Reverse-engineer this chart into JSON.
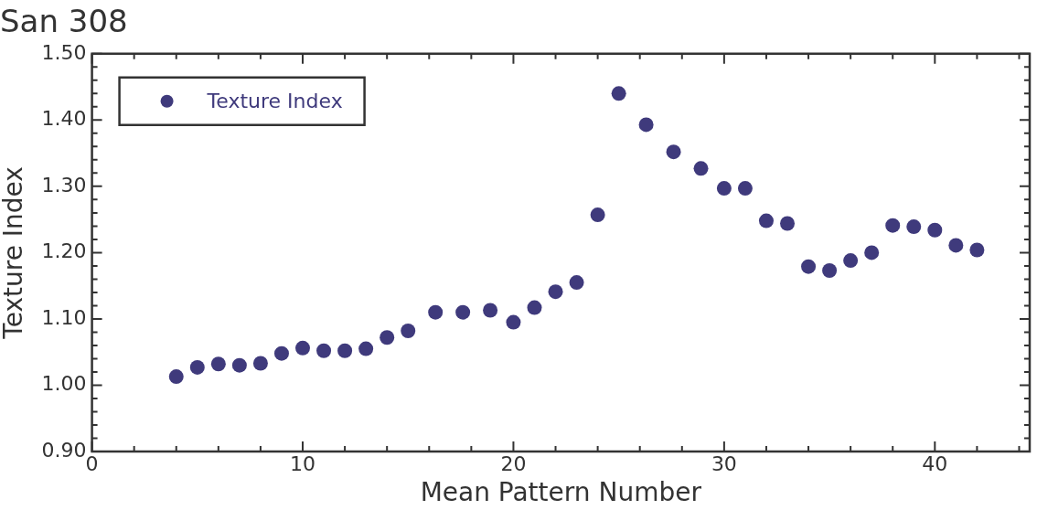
{
  "chart_data": {
    "type": "scatter",
    "title": "San 308",
    "xlabel": "Mean Pattern Number",
    "ylabel": "Texture Index",
    "series": [
      {
        "name": "Texture Index",
        "color": "#3f3a7c",
        "x": [
          4,
          5,
          6,
          7,
          8,
          9,
          10,
          11,
          12,
          13,
          14,
          15,
          16.3,
          17.6,
          18.9,
          20,
          21,
          22,
          23,
          24,
          25,
          26.3,
          27.6,
          28.9,
          30,
          31,
          32,
          33,
          34,
          35,
          36,
          37,
          38,
          39,
          40,
          41,
          42
        ],
        "values": [
          1.013,
          1.027,
          1.032,
          1.03,
          1.033,
          1.048,
          1.056,
          1.052,
          1.052,
          1.055,
          1.072,
          1.082,
          1.11,
          1.11,
          1.113,
          1.095,
          1.117,
          1.141,
          1.155,
          1.257,
          1.44,
          1.393,
          1.352,
          1.327,
          1.297,
          1.297,
          1.248,
          1.244,
          1.179,
          1.173,
          1.188,
          1.2,
          1.241,
          1.239,
          1.234,
          1.211,
          1.204
        ]
      }
    ],
    "xlim": [
      0,
      44.5
    ],
    "xticks": [
      0,
      {
        "value": 2,
        "label": null
      },
      {
        "value": 4,
        "label": null
      },
      {
        "value": 6,
        "label": null
      },
      {
        "value": 8,
        "label": null
      },
      10,
      {
        "value": 12,
        "label": null
      },
      {
        "value": 14,
        "label": null
      },
      {
        "value": 16,
        "label": null
      },
      {
        "value": 18,
        "label": null
      },
      20,
      {
        "value": 22,
        "label": null
      },
      {
        "value": 24,
        "label": null
      },
      {
        "value": 26,
        "label": null
      },
      {
        "value": 28,
        "label": null
      },
      30,
      {
        "value": 32,
        "label": null
      },
      {
        "value": 34,
        "label": null
      },
      {
        "value": 36,
        "label": null
      },
      {
        "value": 38,
        "label": null
      },
      40,
      {
        "value": 42,
        "label": null
      },
      {
        "value": 44,
        "label": null
      }
    ],
    "ylim": [
      0.9,
      1.5
    ],
    "yticks": [
      {
        "value": 0.9,
        "label": "0.90"
      },
      {
        "value": 0.92,
        "label": null
      },
      {
        "value": 0.94,
        "label": null
      },
      {
        "value": 0.96,
        "label": null
      },
      {
        "value": 0.98,
        "label": null
      },
      {
        "value": 1.0,
        "label": "1.00"
      },
      {
        "value": 1.02,
        "label": null
      },
      {
        "value": 1.04,
        "label": null
      },
      {
        "value": 1.06,
        "label": null
      },
      {
        "value": 1.08,
        "label": null
      },
      {
        "value": 1.1,
        "label": "1.10"
      },
      {
        "value": 1.12,
        "label": null
      },
      {
        "value": 1.14,
        "label": null
      },
      {
        "value": 1.16,
        "label": null
      },
      {
        "value": 1.18,
        "label": null
      },
      {
        "value": 1.2,
        "label": "1.20"
      },
      {
        "value": 1.22,
        "label": null
      },
      {
        "value": 1.24,
        "label": null
      },
      {
        "value": 1.26,
        "label": null
      },
      {
        "value": 1.28,
        "label": null
      },
      {
        "value": 1.3,
        "label": "1.30"
      },
      {
        "value": 1.32,
        "label": null
      },
      {
        "value": 1.34,
        "label": null
      },
      {
        "value": 1.36,
        "label": null
      },
      {
        "value": 1.38,
        "label": null
      },
      {
        "value": 1.4,
        "label": "1.40"
      },
      {
        "value": 1.42,
        "label": null
      },
      {
        "value": 1.44,
        "label": null
      },
      {
        "value": 1.46,
        "label": null
      },
      {
        "value": 1.48,
        "label": null
      },
      {
        "value": 1.5,
        "label": "1.50"
      }
    ],
    "grid": false,
    "legend": "top left",
    "marker": "circle"
  }
}
